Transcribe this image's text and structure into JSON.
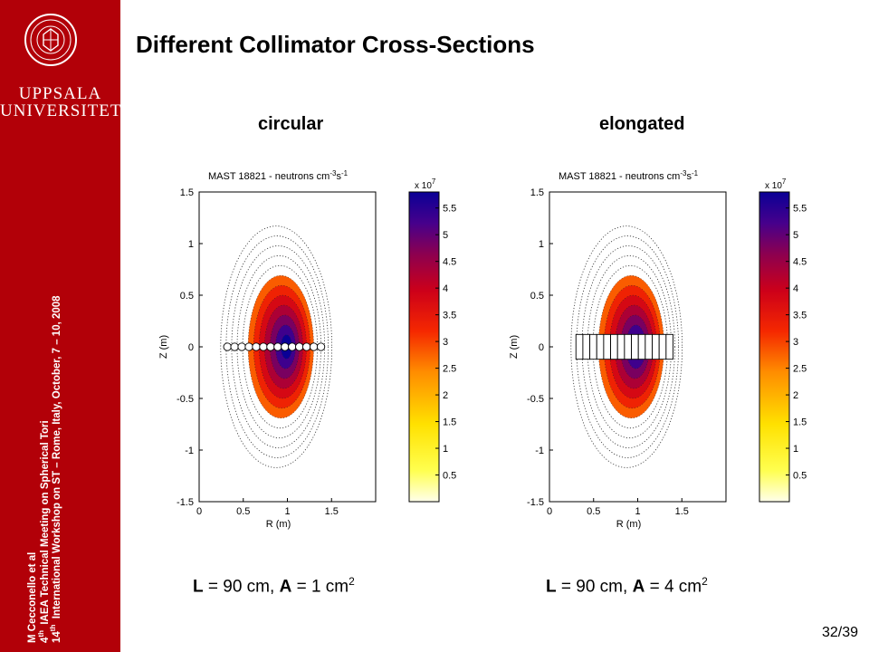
{
  "sidebar": {
    "university_line1": "UPPSALA",
    "university_line2": "UNIVERSITET",
    "logo_icon": "university-seal-icon",
    "credits": {
      "author": "M Cecconello et al",
      "line2_sup": "th",
      "line2_num": "4",
      "line2_text": "IAEA Technical Meeting on Spherical Tori",
      "line3_num": "14",
      "line3_sup": "th",
      "line3_text": "International Workshop on ST – Rome, Italy, October, 7 – 10, 2008"
    }
  },
  "slide": {
    "title": "Different Collimator Cross-Sections",
    "page_number": "32/39"
  },
  "panels": [
    {
      "label": "circular",
      "collimator": "circular",
      "equation": {
        "L_sym": "L",
        "L_text": " = 90 cm, ",
        "A_sym": "A",
        "A_text": "  = 1 cm",
        "A_exp": "2"
      }
    },
    {
      "label": "elongated",
      "collimator": "elongated",
      "equation": {
        "L_sym": "L",
        "L_text": " = 90 cm, ",
        "A_sym": "A",
        "A_text": " = 4 cm",
        "A_exp": "2"
      }
    }
  ],
  "chart_data": [
    {
      "type": "heatmap",
      "title_main": "MAST 18821 - neutrons cm",
      "title_exp1": "-3",
      "title_mid": "s",
      "title_exp2": "-1",
      "xlabel": "R (m)",
      "ylabel": "Z (m)",
      "xlim": [
        0,
        2
      ],
      "ylim": [
        -1.5,
        1.5
      ],
      "xticks": [
        "0",
        "0.5",
        "1",
        "1.5"
      ],
      "yticks": [
        "1.5",
        "1",
        "0.5",
        "0",
        "-0.5",
        "-1",
        "-1.5"
      ],
      "colorbar_multiplier": "x 10",
      "colorbar_exp": "7",
      "colorbar_ticks": [
        "5.5",
        "5",
        "4.5",
        "4",
        "3.5",
        "3",
        "2.5",
        "2",
        "1.5",
        "1",
        "0.5"
      ],
      "colorbar_range": [
        0,
        5.8
      ],
      "emission_peak_R": 1.0,
      "emission_peak_Z": 0.0,
      "collimator_shape": "circle",
      "collimator_count": 14,
      "collimator_R_range": [
        0.32,
        1.38
      ]
    },
    {
      "type": "heatmap",
      "title_main": "MAST 18821 - neutrons cm",
      "title_exp1": "-3",
      "title_mid": "s",
      "title_exp2": "-1",
      "xlabel": "R (m)",
      "ylabel": "Z (m)",
      "xlim": [
        0,
        2
      ],
      "ylim": [
        -1.5,
        1.5
      ],
      "xticks": [
        "0",
        "0.5",
        "1",
        "1.5"
      ],
      "yticks": [
        "1.5",
        "1",
        "0.5",
        "0",
        "-0.5",
        "-1",
        "-1.5"
      ],
      "colorbar_multiplier": "x 10",
      "colorbar_exp": "7",
      "colorbar_ticks": [
        "5.5",
        "5",
        "4.5",
        "4",
        "3.5",
        "3",
        "2.5",
        "2",
        "1.5",
        "1",
        "0.5"
      ],
      "colorbar_range": [
        0,
        5.8
      ],
      "emission_peak_R": 1.0,
      "emission_peak_Z": 0.0,
      "collimator_shape": "rectangle",
      "collimator_count": 14,
      "collimator_R_range": [
        0.3,
        1.4
      ],
      "collimator_Z_range": [
        -0.12,
        0.12
      ]
    }
  ]
}
